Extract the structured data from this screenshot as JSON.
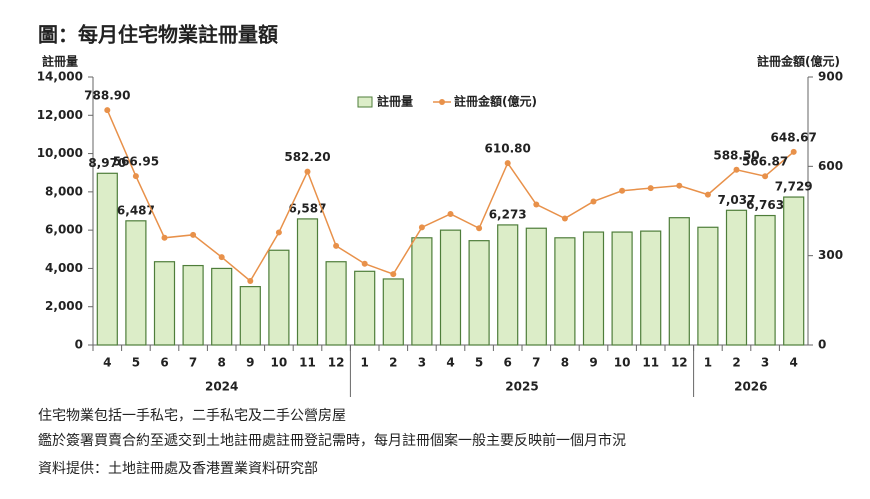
{
  "chart_data": {
    "type": "bar",
    "title": "圖：每月住宅物業註冊量額",
    "y_label": "註冊量",
    "y2_label": "註冊金額(億元)",
    "groups": [
      {
        "label": "2024",
        "categories": [
          "4",
          "5",
          "6",
          "7",
          "8",
          "9",
          "10",
          "11",
          "12"
        ]
      },
      {
        "label": "2025",
        "categories": [
          "1",
          "2",
          "3",
          "4",
          "5",
          "6",
          "7",
          "8",
          "9",
          "10",
          "11",
          "12"
        ]
      },
      {
        "label": "2026",
        "categories": [
          "1",
          "2",
          "3",
          "4"
        ]
      }
    ],
    "series": [
      {
        "name": "註冊量",
        "type": "bar",
        "color": "#dcedc8",
        "stroke": "#4e7d3a",
        "values": [
          8970,
          6487,
          4350,
          4150,
          4000,
          3050,
          4950,
          6587,
          4350,
          3850,
          3450,
          5600,
          6000,
          5450,
          6273,
          6100,
          5600,
          5900,
          5900,
          5950,
          6650,
          6150,
          7037,
          6763,
          7729
        ],
        "value_labels": [
          "8,970",
          "6,487",
          null,
          null,
          null,
          null,
          null,
          "6,587",
          null,
          null,
          null,
          null,
          null,
          null,
          "6,273",
          null,
          null,
          null,
          null,
          null,
          null,
          null,
          "7,037",
          "6,763",
          "7,729"
        ]
      },
      {
        "name": "註冊金額(億元)",
        "type": "line",
        "axis": "y2",
        "color": "#e8914a",
        "values": [
          788.9,
          566.95,
          360,
          370,
          295,
          215,
          378,
          582.2,
          333,
          273,
          238,
          395,
          440,
          392,
          610.8,
          472,
          425,
          482,
          518,
          527,
          535,
          505,
          588.5,
          566.87,
          648.67
        ],
        "value_labels": [
          "788.90",
          "566.95",
          null,
          null,
          null,
          null,
          null,
          "582.20",
          null,
          null,
          null,
          null,
          null,
          null,
          "610.80",
          null,
          null,
          null,
          null,
          null,
          null,
          null,
          "588.50",
          "566.87",
          "648.67"
        ]
      }
    ],
    "ylim": [
      0,
      14000
    ],
    "yticks": [
      0,
      {
        "value": 2000,
        "label": "2,000"
      },
      {
        "value": 4000,
        "label": "4,000"
      },
      {
        "value": 6000,
        "label": "6,000"
      },
      {
        "value": 8000,
        "label": "8,000"
      },
      {
        "value": 10000,
        "label": "10,000"
      },
      {
        "value": 12000,
        "label": "12,000"
      },
      {
        "value": 14000,
        "label": "14,000"
      }
    ],
    "y2lim": [
      0,
      900
    ],
    "y2ticks": [
      0,
      300,
      600,
      900
    ],
    "legend": "top",
    "notes": [
      "住宅物業包括一手私宅，二手私宅及二手公營房屋",
      "鑑於簽署買賣合約至遞交到土地註冊處註冊登記需時，每月註冊個案一般主要反映前一個月市況",
      "資料提供：土地註冊處及香港置業資料研究部"
    ]
  }
}
